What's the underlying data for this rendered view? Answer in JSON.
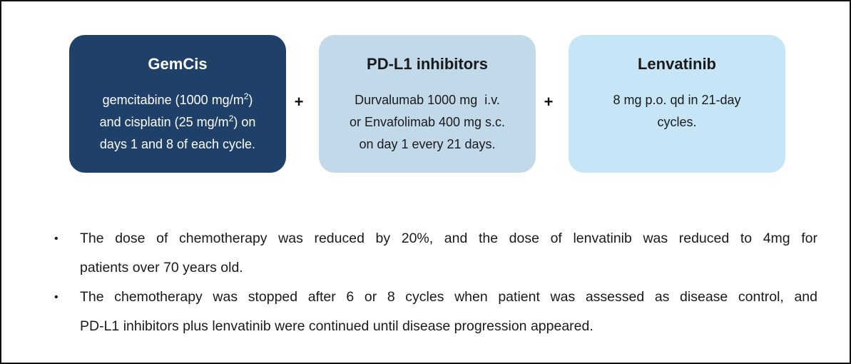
{
  "boxes": [
    {
      "title": "GemCis",
      "lines": [
        {
          "pre": "gemcitabine (1000 mg/m",
          "sup": "2",
          "post": ")"
        },
        {
          "pre": "and cisplatin (25 mg/m",
          "sup": "2",
          "post": ") on"
        },
        {
          "pre": "days 1 and 8 of each cycle.",
          "sup": "",
          "post": ""
        }
      ],
      "fill": "#1f4069",
      "text_color": "#ffffff"
    },
    {
      "title": "PD-L1 inhibitors",
      "lines": [
        {
          "pre": "Durvalumab 1000 mg  i.v.",
          "sup": "",
          "post": ""
        },
        {
          "pre": "or Envafolimab 400 mg s.c.",
          "sup": "",
          "post": ""
        },
        {
          "pre": "on day 1 every 21 days.",
          "sup": "",
          "post": ""
        }
      ],
      "fill": "#c2d9ea",
      "text_color": "#1a1a1a"
    },
    {
      "title": "Lenvatinib",
      "lines": [
        {
          "pre": "8 mg p.o. qd in 21-day",
          "sup": "",
          "post": ""
        },
        {
          "pre": "cycles.",
          "sup": "",
          "post": ""
        }
      ],
      "fill": "#c6e5f6",
      "text_color": "#1a1a1a"
    }
  ],
  "connectors": [
    "+",
    "+"
  ],
  "bullets": [
    {
      "marker": "•",
      "lines": [
        "The dose of chemotherapy was reduced by 20%, and the dose of lenvatinib was reduced to 4mg for",
        "patients over 70 years old."
      ]
    },
    {
      "marker": "•",
      "lines": [
        "The chemotherapy was stopped after 6 or 8 cycles when patient was assessed as disease control, and",
        "PD-L1 inhibitors plus lenvatinib were continued until disease progression appeared."
      ]
    }
  ]
}
